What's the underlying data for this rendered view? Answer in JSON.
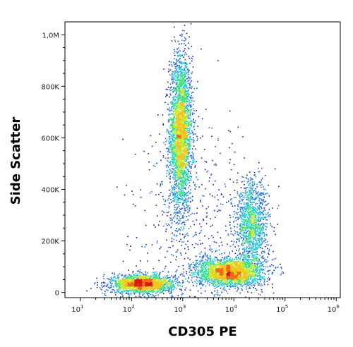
{
  "chart_data": {
    "type": "scatter",
    "title": "",
    "xlabel": "CD305 PE",
    "ylabel": "Side Scatter",
    "x_scale": "log",
    "xlim": [
      5,
      1200000
    ],
    "ylim": [
      -20000,
      1050000
    ],
    "x_ticks": [
      {
        "value": 10,
        "base": "10",
        "exp": "1"
      },
      {
        "value": 100,
        "base": "10",
        "exp": "2"
      },
      {
        "value": 1000,
        "base": "10",
        "exp": "3"
      },
      {
        "value": 10000,
        "base": "10",
        "exp": "4"
      },
      {
        "value": 100000,
        "base": "10",
        "exp": "5"
      },
      {
        "value": 1000000,
        "base": "10",
        "exp": "6"
      }
    ],
    "y_ticks": [
      {
        "value": 0,
        "label": "0"
      },
      {
        "value": 200000,
        "label": "200K"
      },
      {
        "value": 400000,
        "label": "400K"
      },
      {
        "value": 600000,
        "label": "600K"
      },
      {
        "value": 800000,
        "label": "800K"
      },
      {
        "value": 1000000,
        "label": "1,0M"
      }
    ],
    "grid": false,
    "rendering": "density",
    "colormap": [
      "#1a1aa8",
      "#1f6fe6",
      "#1fc8d8",
      "#3fe07a",
      "#c8e82a",
      "#f5c21a",
      "#f06a12",
      "#d81a12"
    ],
    "populations": [
      {
        "x_log10_center": 2.95,
        "x_log10_sd": 0.11,
        "y_center": 620000,
        "y_sd": 150000,
        "weight": 0.34
      },
      {
        "x_log10_center": 2.2,
        "x_log10_sd": 0.3,
        "y_center": 35000,
        "y_sd": 18000,
        "weight": 0.2
      },
      {
        "x_log10_center": 3.9,
        "x_log10_sd": 0.32,
        "y_center": 80000,
        "y_sd": 28000,
        "weight": 0.26
      },
      {
        "x_log10_center": 4.35,
        "x_log10_sd": 0.16,
        "y_center": 260000,
        "y_sd": 90000,
        "weight": 0.14
      },
      {
        "x_log10_center": 3.2,
        "x_log10_sd": 0.6,
        "y_center": 250000,
        "y_sd": 200000,
        "weight": 0.06
      }
    ]
  }
}
